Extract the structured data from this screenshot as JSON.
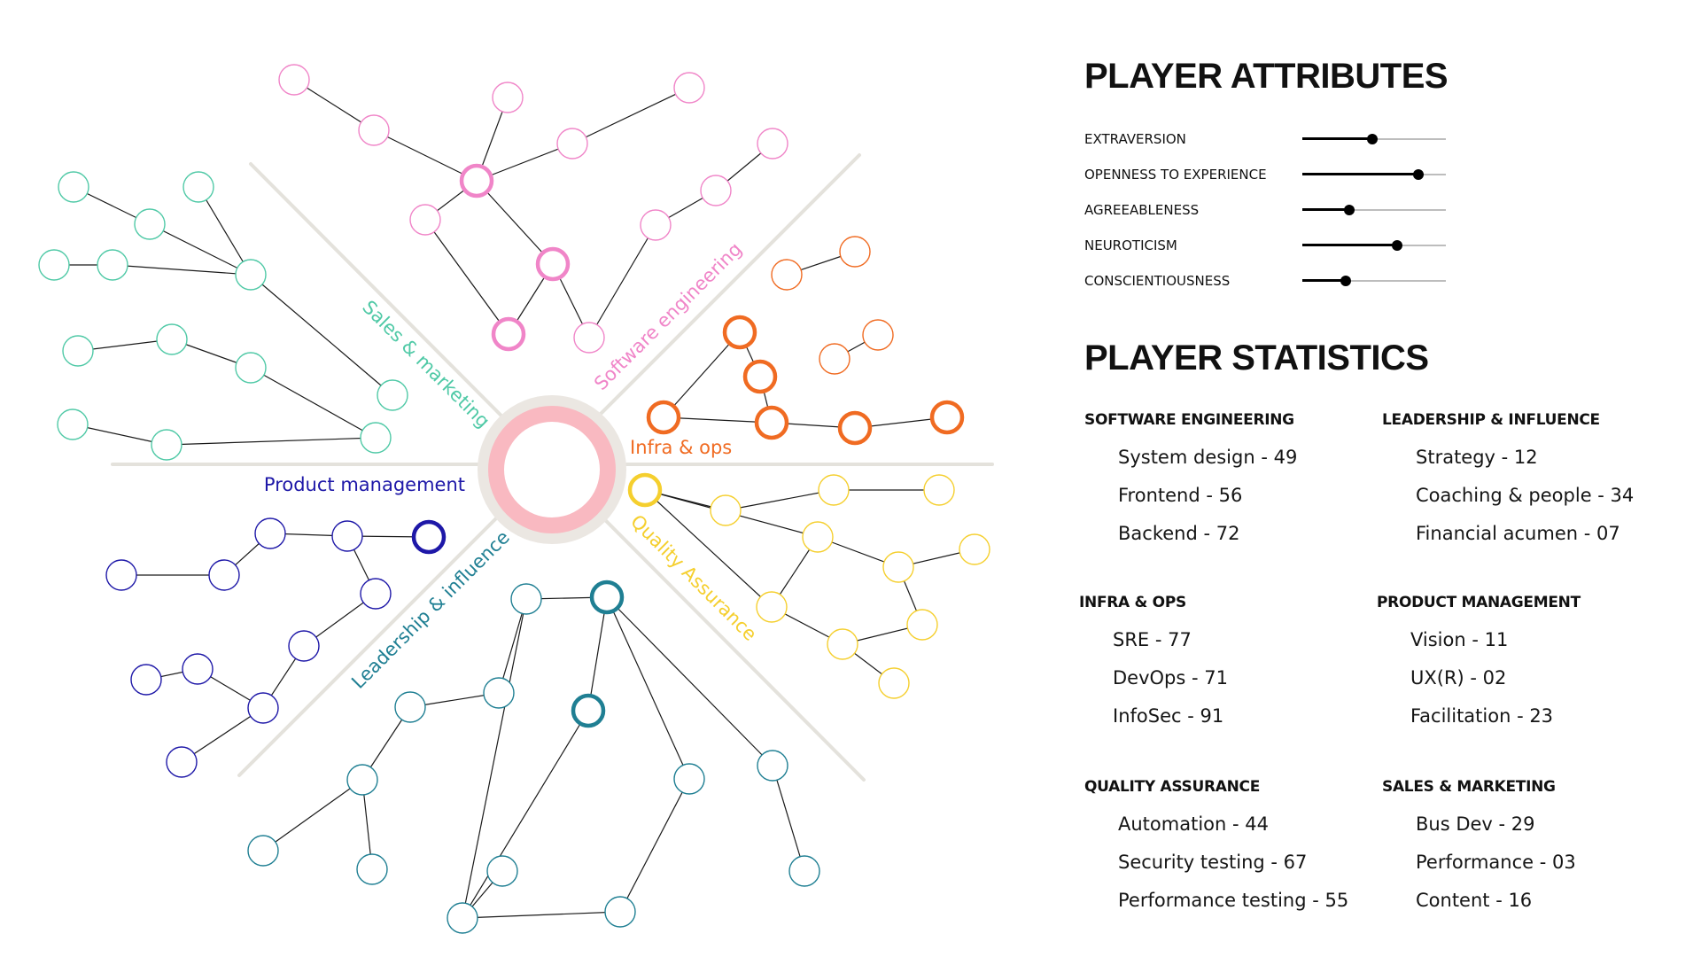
{
  "skill_tree": {
    "branches": [
      {
        "key": "software",
        "label": "Software engineering",
        "color": "#f085c8"
      },
      {
        "key": "infra",
        "label": "Infra & ops",
        "color": "#f06b22"
      },
      {
        "key": "qa",
        "label": "Quality Assurance",
        "color": "#f5cf2e"
      },
      {
        "key": "leadership",
        "label": "Leadership & influence",
        "color": "#1f7f93"
      },
      {
        "key": "product",
        "label": "Product management",
        "color": "#1e18a8"
      },
      {
        "key": "sales",
        "label": "Sales & marketing",
        "color": "#4fc9a6"
      }
    ],
    "hub_color": "#f9b9c1",
    "divider_color": "#e4e2dc"
  },
  "attributes": {
    "title": "PLAYER ATTRIBUTES",
    "items": [
      {
        "label": "EXTRAVERSION",
        "level": 0.49
      },
      {
        "label": "OPENNESS TO EXPERIENCE",
        "level": 0.81
      },
      {
        "label": "AGREEABLENESS",
        "level": 0.33
      },
      {
        "label": "NEUROTICISM",
        "level": 0.66
      },
      {
        "label": "CONSCIENTIOUSNESS",
        "level": 0.3
      }
    ]
  },
  "statistics": {
    "title": "PLAYER STATISTICS",
    "groups": [
      {
        "heading": "SOFTWARE ENGINEERING",
        "items": [
          "System design - 49",
          "Frontend - 56",
          "Backend - 72"
        ]
      },
      {
        "heading": "LEADERSHIP & INFLUENCE",
        "items": [
          "Strategy - 12",
          "Coaching & people - 34",
          "Financial acumen - 07"
        ]
      },
      {
        "heading": "INFRA & OPS",
        "items": [
          "SRE - 77",
          "DevOps - 71",
          "InfoSec - 91"
        ]
      },
      {
        "heading": "PRODUCT MANAGEMENT",
        "items": [
          "Vision - 11",
          "UX(R) - 02",
          "Facilitation - 23"
        ]
      },
      {
        "heading": "QUALITY ASSURANCE",
        "items": [
          "Automation - 44",
          "Security testing - 67",
          "Performance testing - 55"
        ]
      },
      {
        "heading": "SALES & MARKETING",
        "items": [
          "Bus Dev - 29",
          "Performance - 03",
          "Content - 16"
        ]
      }
    ]
  }
}
